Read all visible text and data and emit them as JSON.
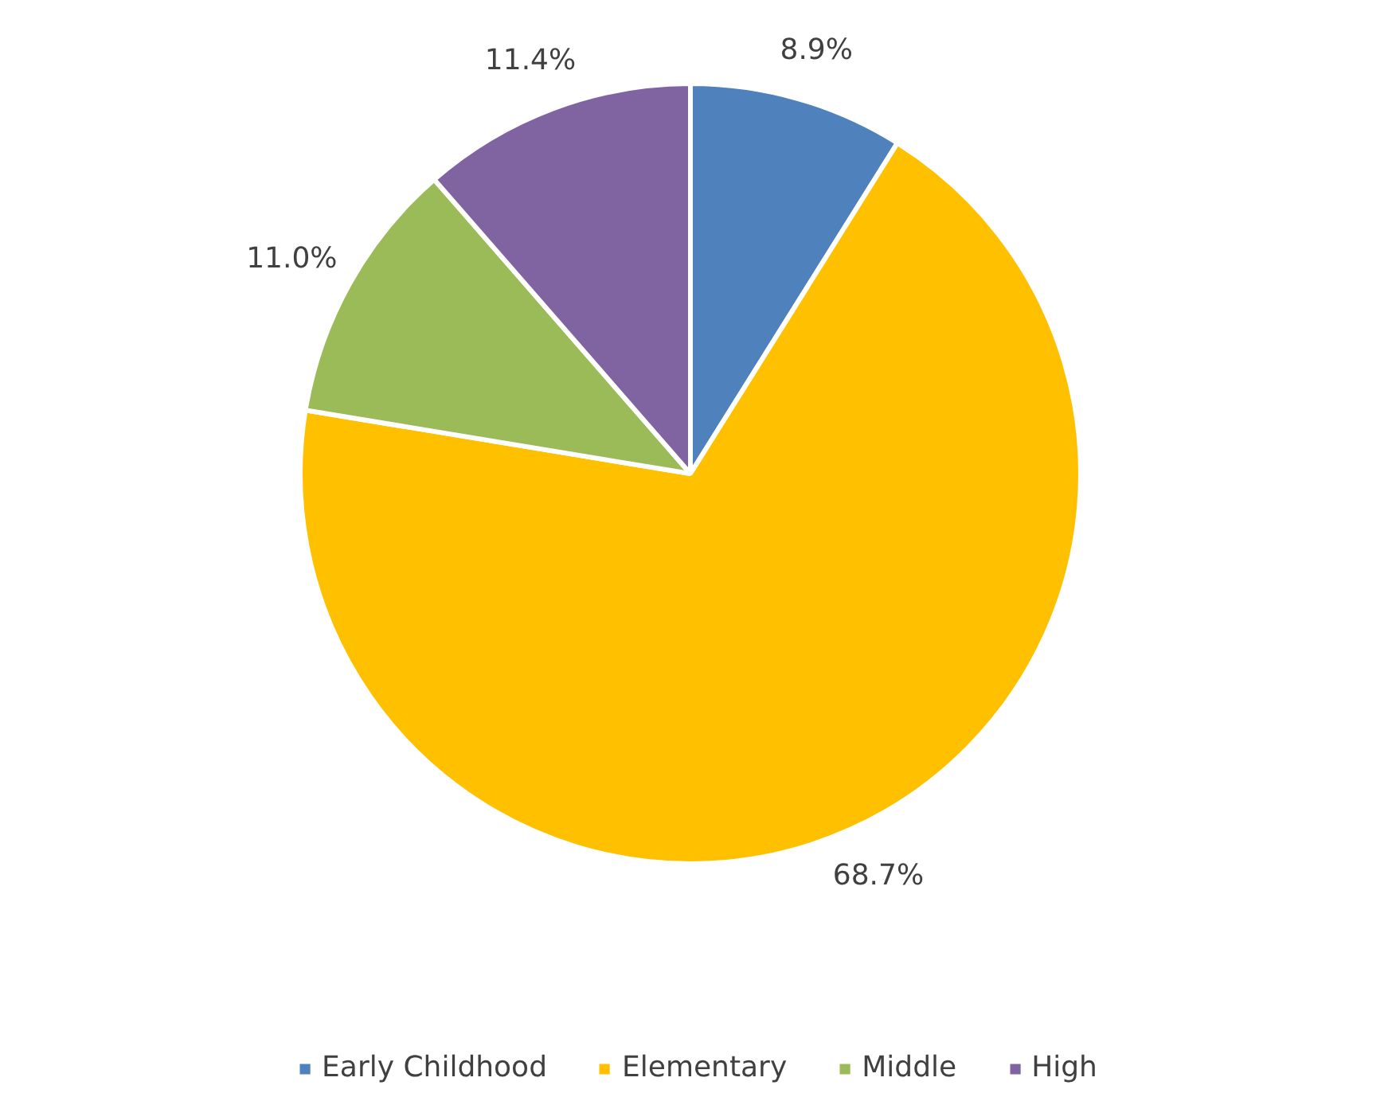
{
  "chart_data": {
    "type": "pie",
    "categories": [
      "Early Childhood",
      "Elementary",
      "Middle",
      "High"
    ],
    "values": [
      8.9,
      68.7,
      11.0,
      11.4
    ],
    "colors": [
      "#4f81bd",
      "#ffc000",
      "#9bbb59",
      "#8064a2"
    ],
    "value_labels": [
      "8.9%",
      "68.7%",
      "11.0%",
      "11.4%"
    ],
    "legend": "bottom"
  }
}
